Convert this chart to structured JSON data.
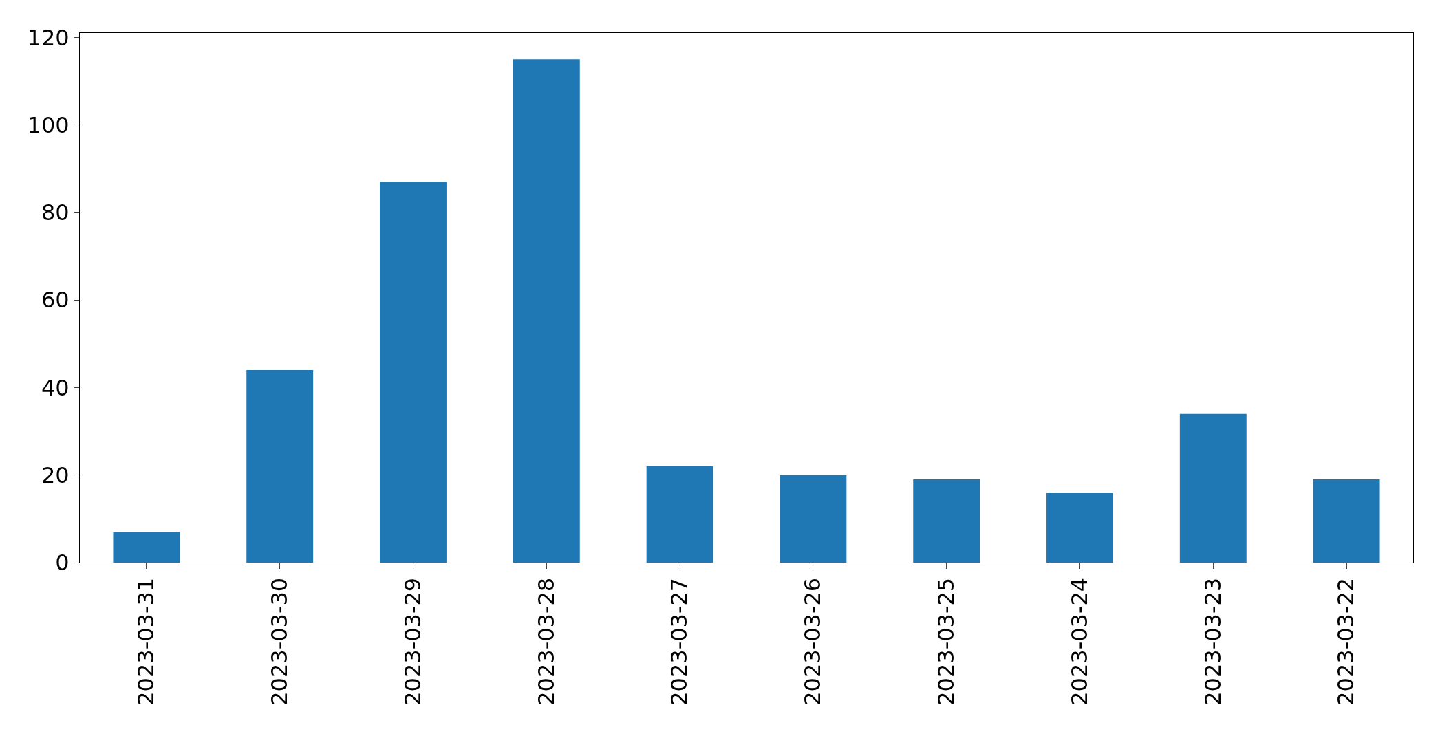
{
  "chart_data": {
    "type": "bar",
    "categories": [
      "2023-03-31",
      "2023-03-30",
      "2023-03-29",
      "2023-03-28",
      "2023-03-27",
      "2023-03-26",
      "2023-03-25",
      "2023-03-24",
      "2023-03-23",
      "2023-03-22"
    ],
    "values": [
      7,
      44,
      87,
      115,
      22,
      20,
      19,
      16,
      34,
      19
    ],
    "color": "#1f77b4",
    "ylim": [
      0,
      121
    ],
    "yticks": [
      0,
      20,
      40,
      60,
      80,
      100,
      120
    ],
    "grid": false
  }
}
